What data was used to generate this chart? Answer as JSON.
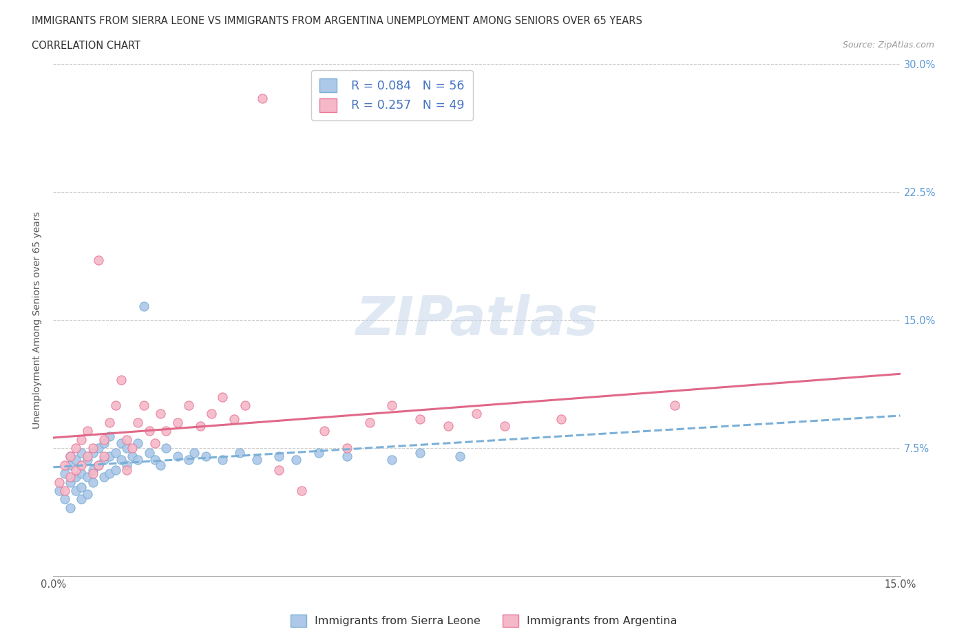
{
  "title_line1": "IMMIGRANTS FROM SIERRA LEONE VS IMMIGRANTS FROM ARGENTINA UNEMPLOYMENT AMONG SENIORS OVER 65 YEARS",
  "title_line2": "CORRELATION CHART",
  "source": "Source: ZipAtlas.com",
  "ylabel": "Unemployment Among Seniors over 65 years",
  "xlim": [
    0.0,
    0.15
  ],
  "ylim": [
    0.0,
    0.3
  ],
  "xticks": [
    0.0,
    0.025,
    0.05,
    0.075,
    0.1,
    0.125,
    0.15
  ],
  "yticks": [
    0.0,
    0.075,
    0.15,
    0.225,
    0.3
  ],
  "yticklabels_right": [
    "",
    "7.5%",
    "15.0%",
    "22.5%",
    "30.0%"
  ],
  "legend_r1": "R = 0.084",
  "legend_n1": "N = 56",
  "legend_r2": "R = 0.257",
  "legend_n2": "N = 49",
  "color_sierra": "#adc8e8",
  "color_argentina": "#f5b8c8",
  "color_sierra_edge": "#7aafd4",
  "color_argentina_edge": "#e87898",
  "color_sierra_line": "#7ab0d8",
  "color_argentina_line": "#e06888",
  "watermark": "ZIPatlas",
  "sierra_leone_x": [
    0.001,
    0.002,
    0.002,
    0.003,
    0.003,
    0.003,
    0.003,
    0.004,
    0.004,
    0.004,
    0.005,
    0.005,
    0.005,
    0.005,
    0.006,
    0.006,
    0.006,
    0.007,
    0.007,
    0.007,
    0.008,
    0.008,
    0.009,
    0.009,
    0.009,
    0.01,
    0.01,
    0.01,
    0.011,
    0.011,
    0.012,
    0.012,
    0.013,
    0.013,
    0.014,
    0.015,
    0.015,
    0.016,
    0.017,
    0.018,
    0.019,
    0.02,
    0.022,
    0.024,
    0.025,
    0.027,
    0.03,
    0.033,
    0.036,
    0.04,
    0.043,
    0.047,
    0.052,
    0.06,
    0.065,
    0.072
  ],
  "sierra_leone_y": [
    0.05,
    0.045,
    0.06,
    0.04,
    0.055,
    0.065,
    0.07,
    0.05,
    0.058,
    0.068,
    0.045,
    0.06,
    0.072,
    0.052,
    0.058,
    0.068,
    0.048,
    0.062,
    0.072,
    0.055,
    0.065,
    0.075,
    0.058,
    0.068,
    0.078,
    0.06,
    0.07,
    0.082,
    0.062,
    0.072,
    0.068,
    0.078,
    0.065,
    0.075,
    0.07,
    0.068,
    0.078,
    0.158,
    0.072,
    0.068,
    0.065,
    0.075,
    0.07,
    0.068,
    0.072,
    0.07,
    0.068,
    0.072,
    0.068,
    0.07,
    0.068,
    0.072,
    0.07,
    0.068,
    0.072,
    0.07
  ],
  "argentina_x": [
    0.001,
    0.002,
    0.002,
    0.003,
    0.003,
    0.004,
    0.004,
    0.005,
    0.005,
    0.006,
    0.006,
    0.007,
    0.007,
    0.008,
    0.008,
    0.009,
    0.009,
    0.01,
    0.011,
    0.012,
    0.013,
    0.013,
    0.014,
    0.015,
    0.016,
    0.017,
    0.018,
    0.019,
    0.02,
    0.022,
    0.024,
    0.026,
    0.028,
    0.03,
    0.032,
    0.034,
    0.037,
    0.04,
    0.044,
    0.048,
    0.052,
    0.056,
    0.06,
    0.065,
    0.07,
    0.075,
    0.08,
    0.09,
    0.11
  ],
  "argentina_y": [
    0.055,
    0.05,
    0.065,
    0.058,
    0.07,
    0.062,
    0.075,
    0.065,
    0.08,
    0.07,
    0.085,
    0.06,
    0.075,
    0.065,
    0.185,
    0.07,
    0.08,
    0.09,
    0.1,
    0.115,
    0.062,
    0.08,
    0.075,
    0.09,
    0.1,
    0.085,
    0.078,
    0.095,
    0.085,
    0.09,
    0.1,
    0.088,
    0.095,
    0.105,
    0.092,
    0.1,
    0.28,
    0.062,
    0.05,
    0.085,
    0.075,
    0.09,
    0.1,
    0.092,
    0.088,
    0.095,
    0.088,
    0.092,
    0.1
  ]
}
